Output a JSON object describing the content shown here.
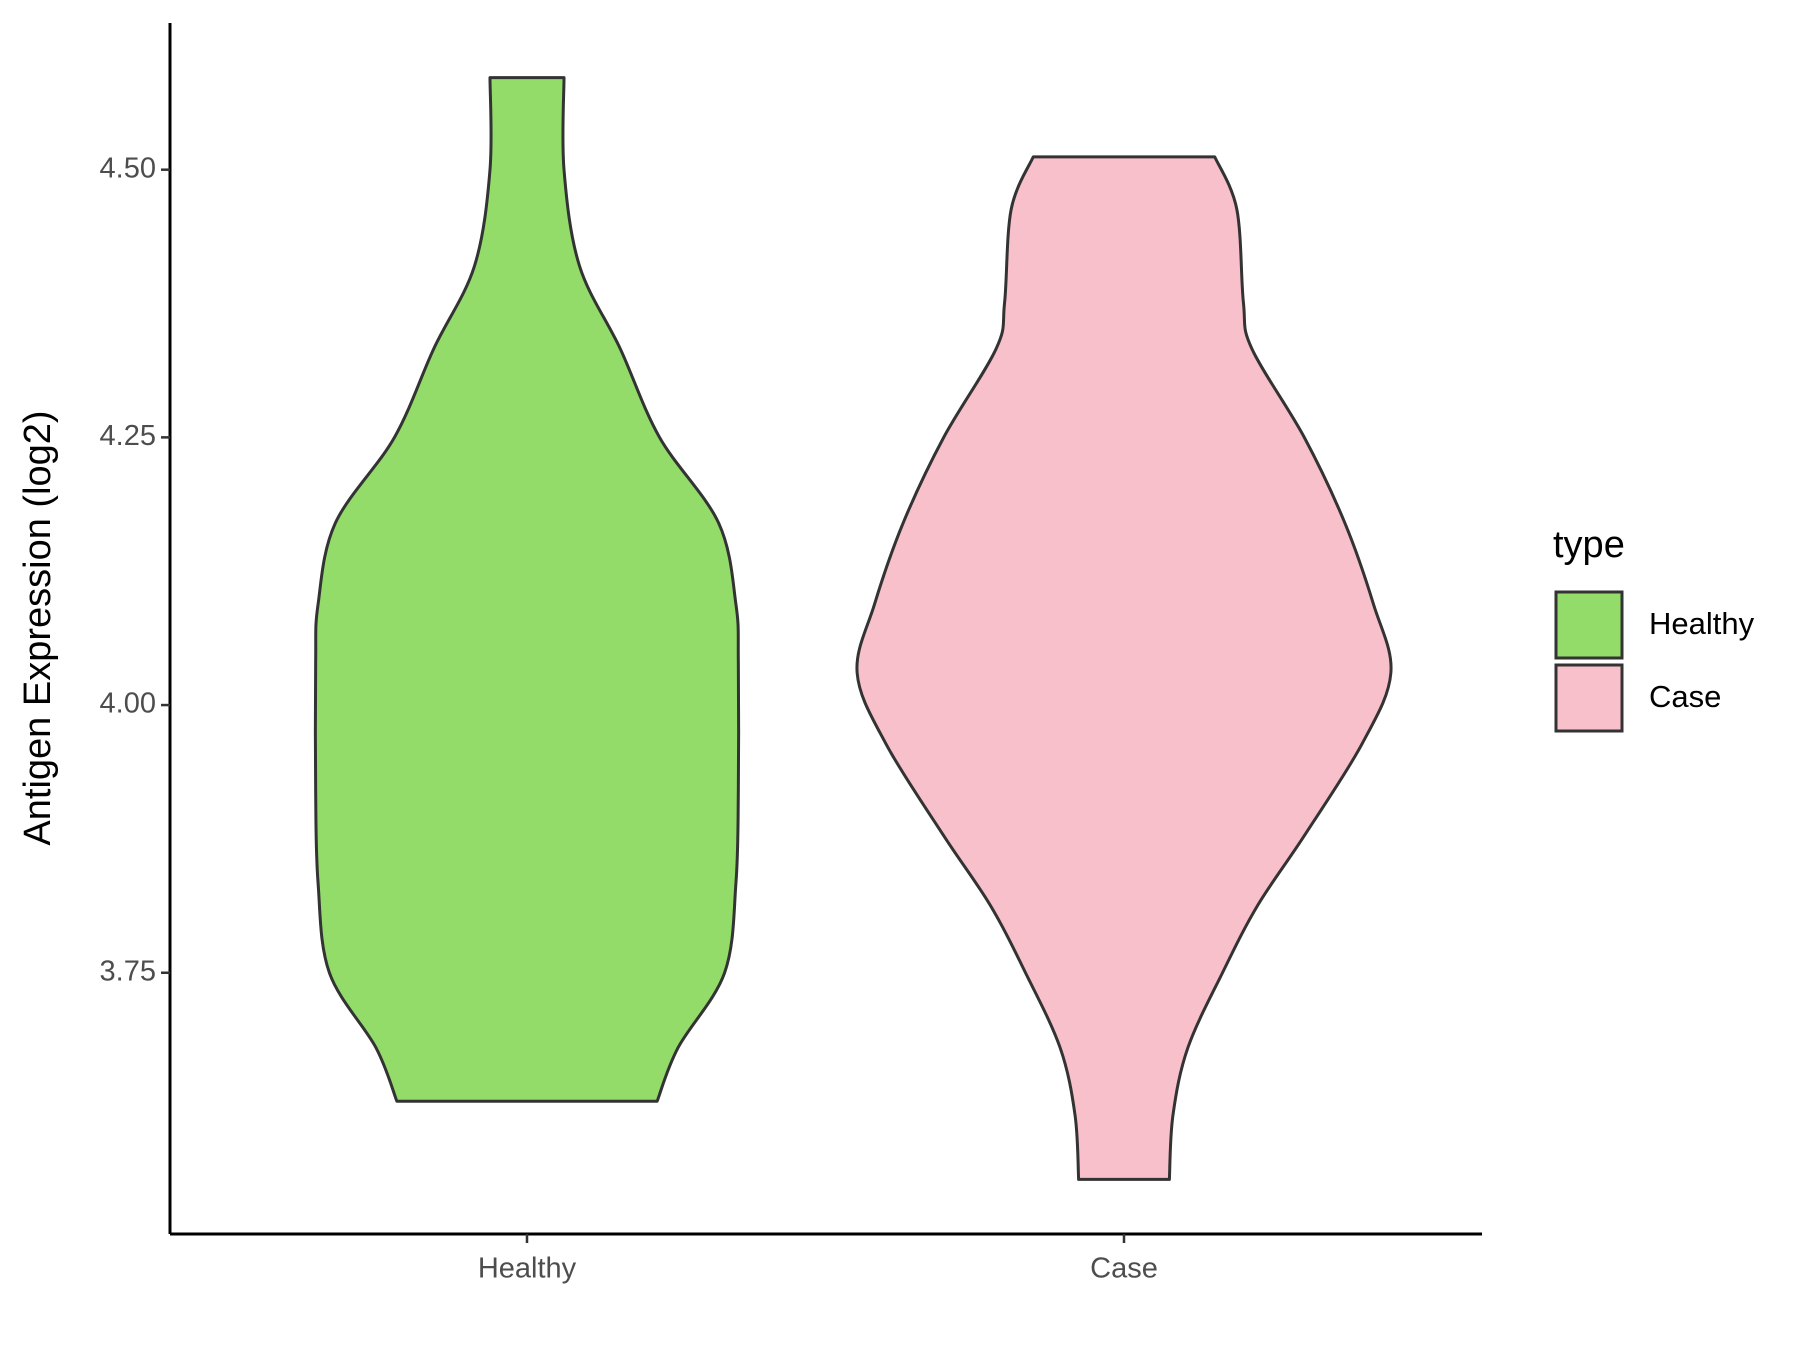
{
  "chart_data": {
    "type": "violin",
    "y_label": "Antigen Expression (log2)",
    "categories": [
      "Healthy",
      "Case"
    ],
    "legend_title": "type",
    "legend": "right",
    "ylim": [
      3.506,
      4.637
    ],
    "yticks": [
      {
        "value": 3.75,
        "label": "3.75"
      },
      {
        "value": 4.0,
        "label": "4.00"
      },
      {
        "value": 4.25,
        "label": "4.25"
      },
      {
        "value": 4.5,
        "label": "4.50"
      }
    ],
    "series": [
      {
        "name": "Healthy",
        "color": "#93dc6a",
        "y": [
          4.586,
          4.5,
          4.41,
          4.333,
          4.25,
          4.17,
          4.094,
          4.04,
          3.92,
          3.834,
          3.75,
          3.68,
          3.63
        ],
        "density": [
          0.062,
          0.062,
          0.088,
          0.156,
          0.222,
          0.321,
          0.35,
          0.354,
          0.354,
          0.35,
          0.331,
          0.253,
          0.218
        ]
      },
      {
        "name": "Case",
        "color": "#f8c0cb",
        "y": [
          4.512,
          4.463,
          4.376,
          4.333,
          4.25,
          4.17,
          4.094,
          4.03,
          3.964,
          3.878,
          3.813,
          3.75,
          3.68,
          3.617,
          3.557
        ],
        "density": [
          0.152,
          0.189,
          0.2,
          0.214,
          0.302,
          0.37,
          0.418,
          0.447,
          0.399,
          0.302,
          0.224,
          0.165,
          0.107,
          0.082,
          0.076
        ]
      }
    ]
  }
}
